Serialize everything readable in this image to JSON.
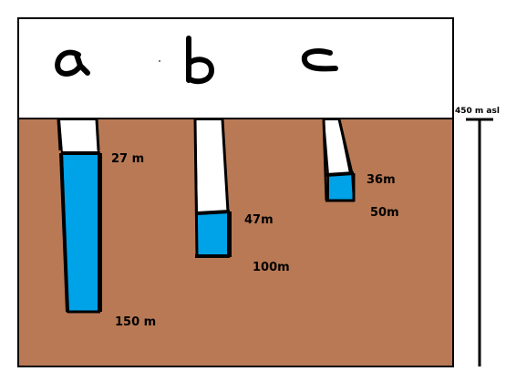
{
  "colors": {
    "ground": "#b97955",
    "water": "#00a2e8",
    "air": "#ffffff",
    "outline": "#000000"
  },
  "scale_label": "450 m asl",
  "wells": [
    {
      "letter": "a",
      "water_depth": "27 m",
      "total_depth": "150 m"
    },
    {
      "letter": "b",
      "water_depth": "47m",
      "total_depth": "100m"
    },
    {
      "letter": "c",
      "water_depth": "36m",
      "total_depth": "50m"
    }
  ]
}
